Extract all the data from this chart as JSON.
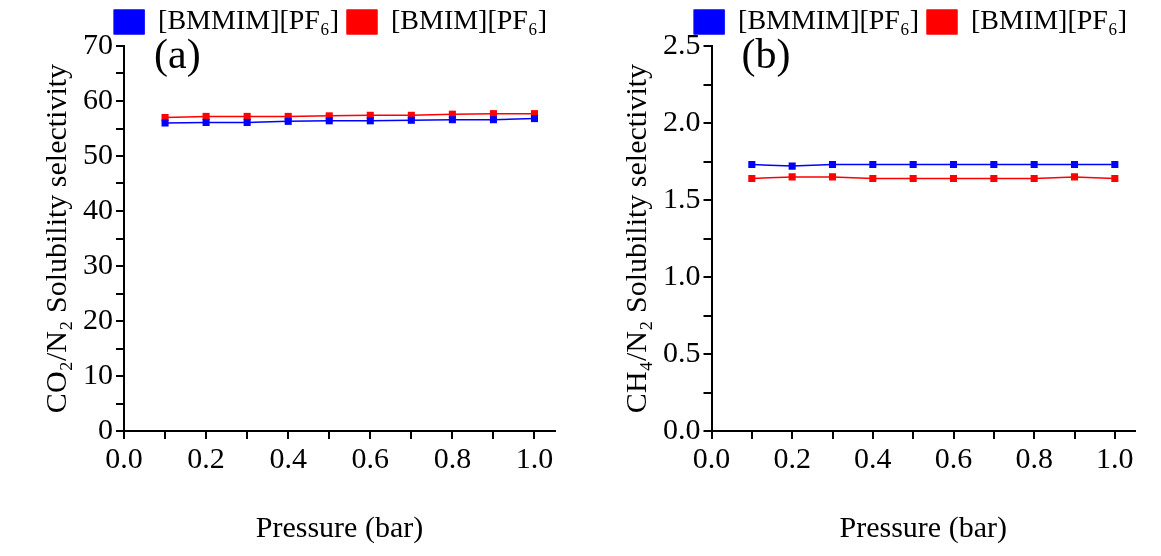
{
  "chart_data": [
    {
      "type": "line",
      "title": "(a)",
      "xlabel": "Pressure (bar)",
      "ylabel": "CO₂/N₂ Solubility selectivity",
      "x": [
        0.1,
        0.2,
        0.3,
        0.4,
        0.5,
        0.6,
        0.7,
        0.8,
        0.9,
        1.0
      ],
      "series": [
        {
          "name": "[BMMIM][PF₆]",
          "color": "#0000ff",
          "values": [
            56.0,
            56.1,
            56.1,
            56.3,
            56.4,
            56.4,
            56.5,
            56.6,
            56.6,
            56.8
          ]
        },
        {
          "name": "[BMIM][PF₆]",
          "color": "#ff0000",
          "values": [
            57.0,
            57.2,
            57.2,
            57.2,
            57.3,
            57.4,
            57.4,
            57.6,
            57.7,
            57.7
          ]
        }
      ],
      "xlim": [
        0,
        1.05
      ],
      "xticks": [
        {
          "value": 0,
          "label": "0.0"
        },
        {
          "value": 0.1,
          "label": null
        },
        0.2,
        {
          "value": 0.3,
          "label": null
        },
        0.4,
        {
          "value": 0.5,
          "label": null
        },
        0.6,
        {
          "value": 0.7,
          "label": null
        },
        0.8,
        {
          "value": 0.9,
          "label": null
        },
        {
          "value": 1,
          "label": "1.0"
        }
      ],
      "ylim": [
        0,
        70
      ],
      "yticks": [
        0,
        {
          "value": 5,
          "label": null
        },
        10,
        {
          "value": 15,
          "label": null
        },
        20,
        {
          "value": 25,
          "label": null
        },
        30,
        {
          "value": 35,
          "label": null
        },
        40,
        {
          "value": 45,
          "label": null
        },
        50,
        {
          "value": 55,
          "label": null
        },
        60,
        {
          "value": 65,
          "label": null
        },
        70
      ],
      "grid": false,
      "legend": "top right",
      "marker": "square",
      "line_style": "solid"
    },
    {
      "type": "line",
      "title": "(b)",
      "xlabel": "Pressure (bar)",
      "ylabel": "CH₄/N₂ Solubility selectivity",
      "x": [
        0.1,
        0.2,
        0.3,
        0.4,
        0.5,
        0.6,
        0.7,
        0.8,
        0.9,
        1.0
      ],
      "series": [
        {
          "name": "[BMMIM][PF₆]",
          "color": "#0000ff",
          "values": [
            1.73,
            1.72,
            1.73,
            1.73,
            1.73,
            1.73,
            1.73,
            1.73,
            1.73,
            1.73
          ]
        },
        {
          "name": "[BMIM][PF₆]",
          "color": "#ff0000",
          "values": [
            1.64,
            1.65,
            1.65,
            1.64,
            1.64,
            1.64,
            1.64,
            1.64,
            1.65,
            1.64
          ]
        }
      ],
      "xlim": [
        0,
        1.05
      ],
      "xticks": [
        {
          "value": 0,
          "label": "0.0"
        },
        {
          "value": 0.1,
          "label": null
        },
        0.2,
        {
          "value": 0.3,
          "label": null
        },
        0.4,
        {
          "value": 0.5,
          "label": null
        },
        0.6,
        {
          "value": 0.7,
          "label": null
        },
        0.8,
        {
          "value": 0.9,
          "label": null
        },
        {
          "value": 1,
          "label": "1.0"
        }
      ],
      "ylim": [
        0,
        2.5
      ],
      "yticks": [
        {
          "value": 0,
          "label": "0.0"
        },
        {
          "value": 0.25,
          "label": null
        },
        0.5,
        {
          "value": 0.75,
          "label": null
        },
        {
          "value": 1,
          "label": "1.0"
        },
        {
          "value": 1.25,
          "label": null
        },
        1.5,
        {
          "value": 1.75,
          "label": null
        },
        {
          "value": 2,
          "label": "2.0"
        },
        {
          "value": 2.25,
          "label": null
        },
        2.5
      ],
      "grid": false,
      "legend": "top right",
      "marker": "square",
      "line_style": "solid"
    }
  ]
}
